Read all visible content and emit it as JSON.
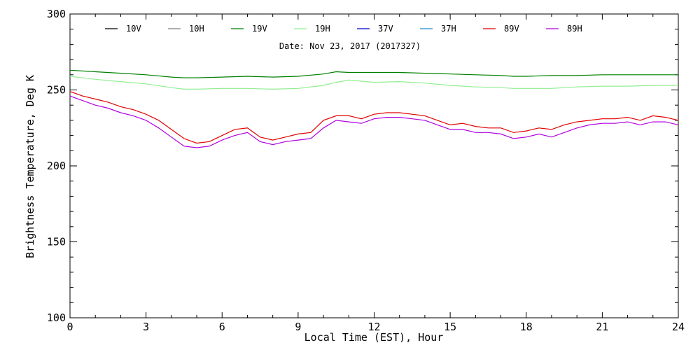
{
  "chart_data": {
    "type": "line",
    "title": "",
    "subtitle": "Date: Nov 23, 2017 (2017327)",
    "xlabel": "Local Time (EST), Hour",
    "ylabel": "Brightness Temperature, Deg K",
    "xlim": [
      0,
      24
    ],
    "ylim": [
      100,
      300
    ],
    "x_ticks": [
      0,
      3,
      6,
      9,
      12,
      15,
      18,
      21,
      24
    ],
    "y_ticks": [
      100,
      150,
      200,
      250,
      300
    ],
    "grid": false,
    "legend_placement": "top",
    "series": [
      {
        "name": "10V",
        "color": "#000000",
        "x": [],
        "y": []
      },
      {
        "name": "10H",
        "color": "#7f7f7f",
        "x": [],
        "y": []
      },
      {
        "name": "19V",
        "color": "#008000",
        "x": [
          0,
          1,
          2,
          3,
          4,
          4.5,
          5,
          6,
          7,
          8,
          9,
          10,
          10.5,
          11,
          12,
          13,
          14,
          15,
          16,
          17,
          17.5,
          18,
          19,
          20,
          21,
          22,
          23,
          24
        ],
        "y": [
          263,
          262,
          261,
          260,
          258.5,
          258,
          258,
          258.5,
          259,
          258.5,
          259,
          260.5,
          262,
          261.5,
          261.5,
          261.5,
          261,
          260.5,
          260,
          259.5,
          259,
          259,
          259.5,
          259.5,
          260,
          260,
          260,
          260
        ]
      },
      {
        "name": "19H",
        "color": "#90ee90",
        "x": [
          0,
          1,
          2,
          3,
          4,
          4.5,
          5,
          6,
          7,
          8,
          9,
          10,
          10.5,
          11,
          12,
          13,
          14,
          15,
          16,
          17,
          17.5,
          18,
          19,
          20,
          21,
          22,
          23,
          24
        ],
        "y": [
          259,
          257,
          255.5,
          254,
          251.5,
          250.5,
          250.5,
          251,
          251,
          250.5,
          251,
          253,
          255,
          256.5,
          255,
          255.5,
          254.5,
          253,
          252,
          251.5,
          251,
          251,
          251,
          252,
          252.5,
          252.5,
          253,
          253
        ]
      },
      {
        "name": "37V",
        "color": "#0000c8",
        "x": [],
        "y": []
      },
      {
        "name": "37H",
        "color": "#1e90c8",
        "x": [],
        "y": []
      },
      {
        "name": "89V",
        "color": "#e00000",
        "x": [
          0,
          0.5,
          1,
          1.5,
          2,
          2.5,
          3,
          3.5,
          4,
          4.5,
          5,
          5.5,
          6,
          6.5,
          7,
          7.5,
          8,
          8.5,
          9,
          9.5,
          10,
          10.5,
          11,
          11.5,
          12,
          12.5,
          13,
          13.5,
          14,
          14.5,
          15,
          15.5,
          16,
          16.5,
          17,
          17.5,
          18,
          18.5,
          19,
          19.5,
          20,
          20.5,
          21,
          21.5,
          22,
          22.5,
          23,
          23.5,
          24
        ],
        "y": [
          249,
          246,
          244,
          242,
          239,
          237,
          234,
          230,
          224,
          218,
          215,
          216,
          220,
          224,
          225,
          219,
          217,
          219,
          221,
          222,
          230,
          233,
          233,
          231,
          234,
          235,
          235,
          234,
          233,
          230,
          227,
          228,
          226,
          225,
          225,
          222,
          223,
          225,
          224,
          227,
          229,
          230,
          231,
          231,
          232,
          230,
          233,
          232,
          230
        ]
      },
      {
        "name": "89H",
        "color": "#b000e0",
        "x": [
          0,
          0.5,
          1,
          1.5,
          2,
          2.5,
          3,
          3.5,
          4,
          4.5,
          5,
          5.5,
          6,
          6.5,
          7,
          7.5,
          8,
          8.5,
          9,
          9.5,
          10,
          10.5,
          11,
          11.5,
          12,
          12.5,
          13,
          13.5,
          14,
          14.5,
          15,
          15.5,
          16,
          16.5,
          17,
          17.5,
          18,
          18.5,
          19,
          19.5,
          20,
          20.5,
          21,
          21.5,
          22,
          22.5,
          23,
          23.5,
          24
        ],
        "y": [
          246,
          243,
          240,
          238,
          235,
          233,
          230,
          225,
          219,
          213,
          212,
          213,
          217,
          220,
          222,
          216,
          214,
          216,
          217,
          218,
          225,
          230,
          229,
          228,
          231,
          232,
          232,
          231,
          230,
          227,
          224,
          224,
          222,
          222,
          221,
          218,
          219,
          221,
          219,
          222,
          225,
          227,
          228,
          228,
          229,
          227,
          229,
          229,
          227
        ]
      }
    ]
  }
}
